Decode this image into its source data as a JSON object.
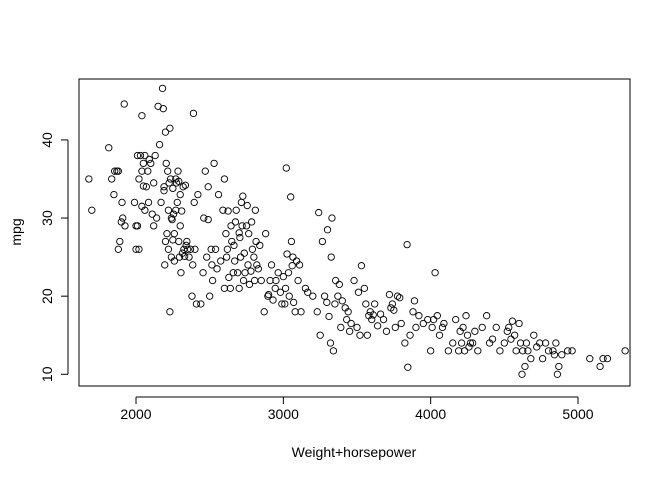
{
  "chart_data": {
    "type": "scatter",
    "title": "",
    "xlabel": "Weight+horsepower",
    "ylabel": "mpg",
    "xlim": [
      1613,
      5353
    ],
    "ylim": [
      8.5,
      47.8
    ],
    "xticks": [
      2000,
      3000,
      4000,
      5000
    ],
    "yticks": [
      10,
      20,
      30,
      40
    ],
    "grid": false,
    "points": [
      [
        1680,
        35.0
      ],
      [
        1700,
        31.0
      ],
      [
        1815,
        39.0
      ],
      [
        1835,
        35.0
      ],
      [
        1850,
        33.0
      ],
      [
        1855,
        36.0
      ],
      [
        1870,
        36.0
      ],
      [
        1880,
        36.0
      ],
      [
        1880,
        26.0
      ],
      [
        1890,
        27.0
      ],
      [
        1900,
        29.5
      ],
      [
        1905,
        32.0
      ],
      [
        1910,
        30.0
      ],
      [
        1920,
        44.6
      ],
      [
        1925,
        29.0
      ],
      [
        1990,
        32.0
      ],
      [
        2000,
        29.0
      ],
      [
        2000,
        26.0
      ],
      [
        2010,
        29.0
      ],
      [
        2010,
        38.0
      ],
      [
        2020,
        26.0
      ],
      [
        2020,
        35.0
      ],
      [
        2030,
        38.0
      ],
      [
        2040,
        31.5
      ],
      [
        2040,
        36.0
      ],
      [
        2040,
        43.1
      ],
      [
        2050,
        34.1
      ],
      [
        2050,
        37.0
      ],
      [
        2060,
        31.0
      ],
      [
        2060,
        38.0
      ],
      [
        2070,
        34.0
      ],
      [
        2080,
        36.0
      ],
      [
        2085,
        32.0
      ],
      [
        2090,
        37.5
      ],
      [
        2100,
        37.0
      ],
      [
        2110,
        30.5
      ],
      [
        2120,
        34.5
      ],
      [
        2120,
        29.0
      ],
      [
        2130,
        38.0
      ],
      [
        2140,
        30.0
      ],
      [
        2150,
        44.3
      ],
      [
        2160,
        39.4
      ],
      [
        2170,
        32.0
      ],
      [
        2180,
        46.6
      ],
      [
        2185,
        44.0
      ],
      [
        2190,
        34.0
      ],
      [
        2190,
        33.5
      ],
      [
        2195,
        24.0
      ],
      [
        2200,
        41.0
      ],
      [
        2200,
        27.0
      ],
      [
        2205,
        37.0
      ],
      [
        2210,
        28.0
      ],
      [
        2215,
        36.0
      ],
      [
        2220,
        31.0
      ],
      [
        2220,
        26.0
      ],
      [
        2225,
        34.5
      ],
      [
        2230,
        41.5
      ],
      [
        2230,
        18.0
      ],
      [
        2235,
        35.0
      ],
      [
        2240,
        30.0
      ],
      [
        2240,
        25.0
      ],
      [
        2245,
        29.8
      ],
      [
        2250,
        27.2
      ],
      [
        2250,
        33.8
      ],
      [
        2255,
        30.5
      ],
      [
        2260,
        24.5
      ],
      [
        2260,
        28.0
      ],
      [
        2270,
        35.0
      ],
      [
        2270,
        31.0
      ],
      [
        2275,
        34.5
      ],
      [
        2280,
        32.0
      ],
      [
        2285,
        36.0
      ],
      [
        2290,
        27.0
      ],
      [
        2290,
        34.7
      ],
      [
        2295,
        25.0
      ],
      [
        2300,
        33.0
      ],
      [
        2300,
        29.0
      ],
      [
        2305,
        23.0
      ],
      [
        2310,
        30.9
      ],
      [
        2315,
        25.5
      ],
      [
        2320,
        34.0
      ],
      [
        2325,
        26.0
      ],
      [
        2330,
        25.1
      ],
      [
        2335,
        34.2
      ],
      [
        2340,
        26.5
      ],
      [
        2345,
        27.0
      ],
      [
        2350,
        26.0
      ],
      [
        2360,
        25.0
      ],
      [
        2370,
        26.0
      ],
      [
        2380,
        20.0
      ],
      [
        2385,
        24.0
      ],
      [
        2390,
        43.4
      ],
      [
        2395,
        32.0
      ],
      [
        2400,
        26.0
      ],
      [
        2410,
        19.0
      ],
      [
        2420,
        33.0
      ],
      [
        2440,
        19.0
      ],
      [
        2455,
        23.0
      ],
      [
        2460,
        30.0
      ],
      [
        2470,
        36.0
      ],
      [
        2480,
        25.0
      ],
      [
        2490,
        29.8
      ],
      [
        2490,
        34.0
      ],
      [
        2500,
        20.0
      ],
      [
        2510,
        26.0
      ],
      [
        2515,
        24.0
      ],
      [
        2520,
        22.0
      ],
      [
        2530,
        37.0
      ],
      [
        2540,
        26.0
      ],
      [
        2550,
        23.5
      ],
      [
        2560,
        33.0
      ],
      [
        2575,
        24.5
      ],
      [
        2590,
        31.0
      ],
      [
        2600,
        21.0
      ],
      [
        2600,
        35.0
      ],
      [
        2610,
        28.0
      ],
      [
        2615,
        25.0
      ],
      [
        2620,
        26.0
      ],
      [
        2625,
        30.9
      ],
      [
        2630,
        22.4
      ],
      [
        2640,
        21.0
      ],
      [
        2645,
        29.0
      ],
      [
        2650,
        27.0
      ],
      [
        2660,
        23.0
      ],
      [
        2665,
        26.5
      ],
      [
        2670,
        24.5
      ],
      [
        2675,
        29.5
      ],
      [
        2680,
        31.0
      ],
      [
        2690,
        23.0
      ],
      [
        2700,
        21.0
      ],
      [
        2700,
        28.1
      ],
      [
        2705,
        27.5
      ],
      [
        2710,
        25.0
      ],
      [
        2715,
        32.0
      ],
      [
        2720,
        29.0
      ],
      [
        2725,
        32.8
      ],
      [
        2730,
        22.0
      ],
      [
        2735,
        25.5
      ],
      [
        2740,
        23.0
      ],
      [
        2750,
        29.0
      ],
      [
        2755,
        31.6
      ],
      [
        2760,
        24.0
      ],
      [
        2765,
        28.0
      ],
      [
        2770,
        21.5
      ],
      [
        2780,
        23.2
      ],
      [
        2785,
        29.5
      ],
      [
        2790,
        26.0
      ],
      [
        2800,
        25.0
      ],
      [
        2805,
        22.0
      ],
      [
        2810,
        31.0
      ],
      [
        2815,
        27.0
      ],
      [
        2820,
        24.0
      ],
      [
        2830,
        23.5
      ],
      [
        2840,
        26.5
      ],
      [
        2850,
        22.0
      ],
      [
        2870,
        18.0
      ],
      [
        2880,
        28.0
      ],
      [
        2895,
        20.0
      ],
      [
        2900,
        20.2
      ],
      [
        2910,
        22.0
      ],
      [
        2920,
        24.0
      ],
      [
        2930,
        19.5
      ],
      [
        2945,
        21.0
      ],
      [
        2950,
        22.0
      ],
      [
        2965,
        23.0
      ],
      [
        2980,
        20.5
      ],
      [
        2990,
        19.0
      ],
      [
        3000,
        22.5
      ],
      [
        3010,
        19.0
      ],
      [
        3015,
        21.0
      ],
      [
        3020,
        36.4
      ],
      [
        3025,
        25.4
      ],
      [
        3035,
        23.0
      ],
      [
        3040,
        20.0
      ],
      [
        3050,
        32.7
      ],
      [
        3055,
        27.0
      ],
      [
        3060,
        23.9
      ],
      [
        3065,
        25.0
      ],
      [
        3070,
        19.2
      ],
      [
        3080,
        18.0
      ],
      [
        3090,
        24.5
      ],
      [
        3100,
        22.0
      ],
      [
        3110,
        24.0
      ],
      [
        3120,
        18.0
      ],
      [
        3150,
        21.0
      ],
      [
        3165,
        20.5
      ],
      [
        3200,
        20.0
      ],
      [
        3230,
        18.0
      ],
      [
        3240,
        30.7
      ],
      [
        3250,
        15.0
      ],
      [
        3265,
        27.0
      ],
      [
        3280,
        20.0
      ],
      [
        3295,
        19.2
      ],
      [
        3300,
        28.5
      ],
      [
        3310,
        17.4
      ],
      [
        3320,
        14.0
      ],
      [
        3325,
        25.0
      ],
      [
        3330,
        30.0
      ],
      [
        3340,
        13.0
      ],
      [
        3350,
        19.0
      ],
      [
        3355,
        22.0
      ],
      [
        3370,
        20.0
      ],
      [
        3380,
        21.5
      ],
      [
        3390,
        16.0
      ],
      [
        3400,
        19.4
      ],
      [
        3420,
        18.5
      ],
      [
        3430,
        17.0
      ],
      [
        3440,
        18.0
      ],
      [
        3450,
        15.5
      ],
      [
        3460,
        16.5
      ],
      [
        3480,
        22.0
      ],
      [
        3500,
        16.0
      ],
      [
        3510,
        20.5
      ],
      [
        3520,
        15.0
      ],
      [
        3530,
        23.9
      ],
      [
        3550,
        21.0
      ],
      [
        3560,
        19.0
      ],
      [
        3570,
        15.0
      ],
      [
        3580,
        17.5
      ],
      [
        3590,
        18.0
      ],
      [
        3600,
        17.0
      ],
      [
        3610,
        17.6
      ],
      [
        3620,
        19.0
      ],
      [
        3640,
        16.2
      ],
      [
        3660,
        17.7
      ],
      [
        3680,
        17.0
      ],
      [
        3700,
        15.5
      ],
      [
        3720,
        20.2
      ],
      [
        3730,
        18.5
      ],
      [
        3740,
        19.0
      ],
      [
        3750,
        18.2
      ],
      [
        3760,
        16.0
      ],
      [
        3775,
        20.0
      ],
      [
        3790,
        19.8
      ],
      [
        3800,
        16.5
      ],
      [
        3825,
        14.0
      ],
      [
        3840,
        26.6
      ],
      [
        3845,
        10.9
      ],
      [
        3860,
        15.0
      ],
      [
        3880,
        18.0
      ],
      [
        3890,
        19.4
      ],
      [
        3900,
        16.0
      ],
      [
        3920,
        17.5
      ],
      [
        3950,
        16.5
      ],
      [
        3980,
        17.0
      ],
      [
        4000,
        13.0
      ],
      [
        4010,
        16.0
      ],
      [
        4020,
        17.0
      ],
      [
        4030,
        23.0
      ],
      [
        4045,
        17.5
      ],
      [
        4060,
        15.0
      ],
      [
        4080,
        16.0
      ],
      [
        4090,
        16.5
      ],
      [
        4120,
        13.0
      ],
      [
        4150,
        14.0
      ],
      [
        4170,
        17.0
      ],
      [
        4190,
        13.0
      ],
      [
        4200,
        15.5
      ],
      [
        4210,
        14.0
      ],
      [
        4220,
        16.0
      ],
      [
        4230,
        13.0
      ],
      [
        4240,
        17.5
      ],
      [
        4250,
        15.0
      ],
      [
        4260,
        13.5
      ],
      [
        4270,
        14.0
      ],
      [
        4285,
        14.0
      ],
      [
        4300,
        15.5
      ],
      [
        4320,
        13.0
      ],
      [
        4350,
        16.0
      ],
      [
        4380,
        17.5
      ],
      [
        4400,
        14.0
      ],
      [
        4420,
        14.5
      ],
      [
        4445,
        16.0
      ],
      [
        4470,
        13.0
      ],
      [
        4500,
        14.0
      ],
      [
        4520,
        15.5
      ],
      [
        4530,
        16.0
      ],
      [
        4545,
        14.5
      ],
      [
        4555,
        16.8
      ],
      [
        4570,
        15.0
      ],
      [
        4580,
        13.0
      ],
      [
        4600,
        16.5
      ],
      [
        4610,
        14.0
      ],
      [
        4620,
        10.0
      ],
      [
        4625,
        13.0
      ],
      [
        4640,
        11.0
      ],
      [
        4650,
        14.0
      ],
      [
        4660,
        13.0
      ],
      [
        4680,
        12.0
      ],
      [
        4700,
        15.0
      ],
      [
        4720,
        13.5
      ],
      [
        4740,
        14.0
      ],
      [
        4760,
        12.0
      ],
      [
        4780,
        14.0
      ],
      [
        4800,
        13.0
      ],
      [
        4830,
        13.0
      ],
      [
        4840,
        12.5
      ],
      [
        4850,
        14.0
      ],
      [
        4860,
        10.0
      ],
      [
        4870,
        11.0
      ],
      [
        4890,
        12.5
      ],
      [
        4930,
        13.0
      ],
      [
        4960,
        13.0
      ],
      [
        5080,
        12.0
      ],
      [
        5150,
        11.0
      ],
      [
        5170,
        12.0
      ],
      [
        5200,
        12.0
      ],
      [
        5320,
        13.0
      ]
    ]
  }
}
